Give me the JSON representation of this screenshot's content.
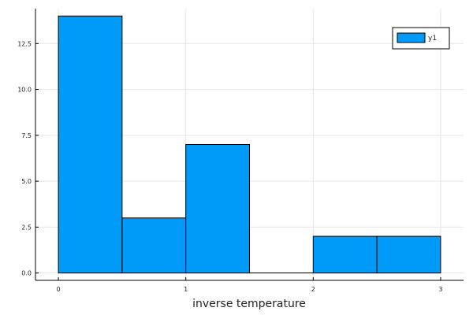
{
  "chart_data": {
    "type": "bar",
    "title": "",
    "xlabel": "inverse temperature",
    "ylabel": "",
    "bins": [
      {
        "start": 0.0,
        "end": 0.5,
        "value": 14
      },
      {
        "start": 0.5,
        "end": 1.0,
        "value": 3
      },
      {
        "start": 1.0,
        "end": 1.5,
        "value": 7
      },
      {
        "start": 1.5,
        "end": 2.0,
        "value": 0
      },
      {
        "start": 2.0,
        "end": 2.5,
        "value": 2
      },
      {
        "start": 2.5,
        "end": 3.0,
        "value": 2
      }
    ],
    "xlim": [
      -0.18,
      3.18
    ],
    "ylim": [
      -0.4,
      14.4
    ],
    "x_ticks": [
      {
        "value": 0,
        "label": "0"
      },
      {
        "value": 1,
        "label": "1"
      },
      {
        "value": 2,
        "label": "2"
      },
      {
        "value": 3,
        "label": "3"
      }
    ],
    "y_ticks": [
      {
        "value": 0,
        "label": "0.0"
      },
      {
        "value": 2.5,
        "label": "2.5"
      },
      {
        "value": 5,
        "label": "5.0"
      },
      {
        "value": 7.5,
        "label": "7.5"
      },
      {
        "value": 10,
        "label": "10.0"
      },
      {
        "value": 12.5,
        "label": "12.5"
      }
    ],
    "series": [
      {
        "name": "y1",
        "color": "#009af9"
      }
    ],
    "legend": {
      "position": "top-right"
    },
    "grid": true
  }
}
